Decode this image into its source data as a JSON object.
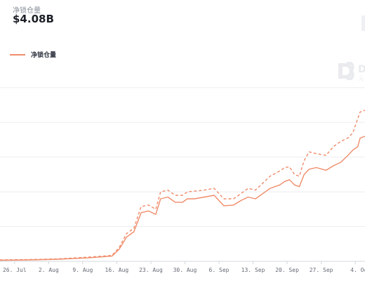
{
  "header": {
    "label": "净锁仓量",
    "value": "$4.08B"
  },
  "legend": {
    "label": "净锁仓量"
  },
  "watermark": {
    "letter": "D",
    "sub": "元"
  },
  "colors": {
    "series": "#f08c6a",
    "gridline": "#eceef1",
    "tick_text": "#666b75",
    "watermark": "#e9ebee"
  },
  "chart_data": {
    "type": "line",
    "title": "",
    "xlabel": "",
    "ylabel": "",
    "x_tick_labels": [
      "26. Jul",
      "2. Aug",
      "9. Aug",
      "16. Aug",
      "23. Aug",
      "30. Aug",
      "6. Sep",
      "13. Sep",
      "20. Sep",
      "27. Sep",
      "4. Oc"
    ],
    "x_tick_days": [
      0,
      7,
      14,
      21,
      28,
      35,
      42,
      49,
      56,
      63,
      70
    ],
    "xlim_days": [
      -3,
      72
    ],
    "ylim": [
      0,
      5.5
    ],
    "grid": true,
    "legend_position": "top-left",
    "y_tick_values": [
      0,
      1,
      2,
      3,
      4,
      5
    ],
    "series": [
      {
        "name": "净锁仓量",
        "style": "solid",
        "points": [
          [
            -3,
            0.03
          ],
          [
            3,
            0.04
          ],
          [
            9,
            0.06
          ],
          [
            15,
            0.1
          ],
          [
            20,
            0.15
          ],
          [
            21.5,
            0.35
          ],
          [
            23,
            0.7
          ],
          [
            24.5,
            0.85
          ],
          [
            26,
            1.4
          ],
          [
            27.5,
            1.45
          ],
          [
            29,
            1.35
          ],
          [
            30,
            1.8
          ],
          [
            31.5,
            1.85
          ],
          [
            33,
            1.7
          ],
          [
            34.5,
            1.7
          ],
          [
            35.5,
            1.8
          ],
          [
            37,
            1.8
          ],
          [
            39,
            1.85
          ],
          [
            41,
            1.9
          ],
          [
            42,
            1.75
          ],
          [
            43,
            1.6
          ],
          [
            45,
            1.62
          ],
          [
            46.5,
            1.75
          ],
          [
            48,
            1.85
          ],
          [
            49.5,
            1.8
          ],
          [
            51,
            1.95
          ],
          [
            52.5,
            2.1
          ],
          [
            54.5,
            2.2
          ],
          [
            55.5,
            2.3
          ],
          [
            56.5,
            2.35
          ],
          [
            57.5,
            2.2
          ],
          [
            58.5,
            2.15
          ],
          [
            59.5,
            2.5
          ],
          [
            60.5,
            2.65
          ],
          [
            62,
            2.7
          ],
          [
            64,
            2.62
          ],
          [
            65.5,
            2.75
          ],
          [
            67,
            2.85
          ],
          [
            68.5,
            3.05
          ],
          [
            69.5,
            3.2
          ],
          [
            70.5,
            3.3
          ],
          [
            71,
            3.55
          ],
          [
            72,
            3.6
          ]
        ]
      },
      {
        "name": "净锁仓量 (dashed)",
        "style": "dashed",
        "points": [
          [
            -3,
            0.04
          ],
          [
            3,
            0.05
          ],
          [
            9,
            0.07
          ],
          [
            15,
            0.12
          ],
          [
            20,
            0.17
          ],
          [
            21.5,
            0.4
          ],
          [
            23,
            0.8
          ],
          [
            24.5,
            0.95
          ],
          [
            26,
            1.58
          ],
          [
            27.5,
            1.62
          ],
          [
            29,
            1.5
          ],
          [
            30,
            2.0
          ],
          [
            31.5,
            2.05
          ],
          [
            33,
            1.9
          ],
          [
            34.5,
            1.9
          ],
          [
            35.5,
            2.0
          ],
          [
            37,
            2.02
          ],
          [
            39,
            2.05
          ],
          [
            41,
            2.1
          ],
          [
            42,
            1.95
          ],
          [
            43,
            1.8
          ],
          [
            45,
            1.8
          ],
          [
            46.5,
            1.95
          ],
          [
            48,
            2.1
          ],
          [
            49.5,
            2.05
          ],
          [
            51,
            2.25
          ],
          [
            52.5,
            2.45
          ],
          [
            54.5,
            2.6
          ],
          [
            55.5,
            2.7
          ],
          [
            56.5,
            2.72
          ],
          [
            57.5,
            2.5
          ],
          [
            58.5,
            2.45
          ],
          [
            59.5,
            2.9
          ],
          [
            60.5,
            3.15
          ],
          [
            62,
            3.1
          ],
          [
            64,
            3.05
          ],
          [
            65.5,
            3.3
          ],
          [
            67,
            3.45
          ],
          [
            68.5,
            3.55
          ],
          [
            69.5,
            3.7
          ],
          [
            70.5,
            4.1
          ],
          [
            71,
            4.3
          ],
          [
            72,
            4.35
          ]
        ]
      }
    ]
  }
}
